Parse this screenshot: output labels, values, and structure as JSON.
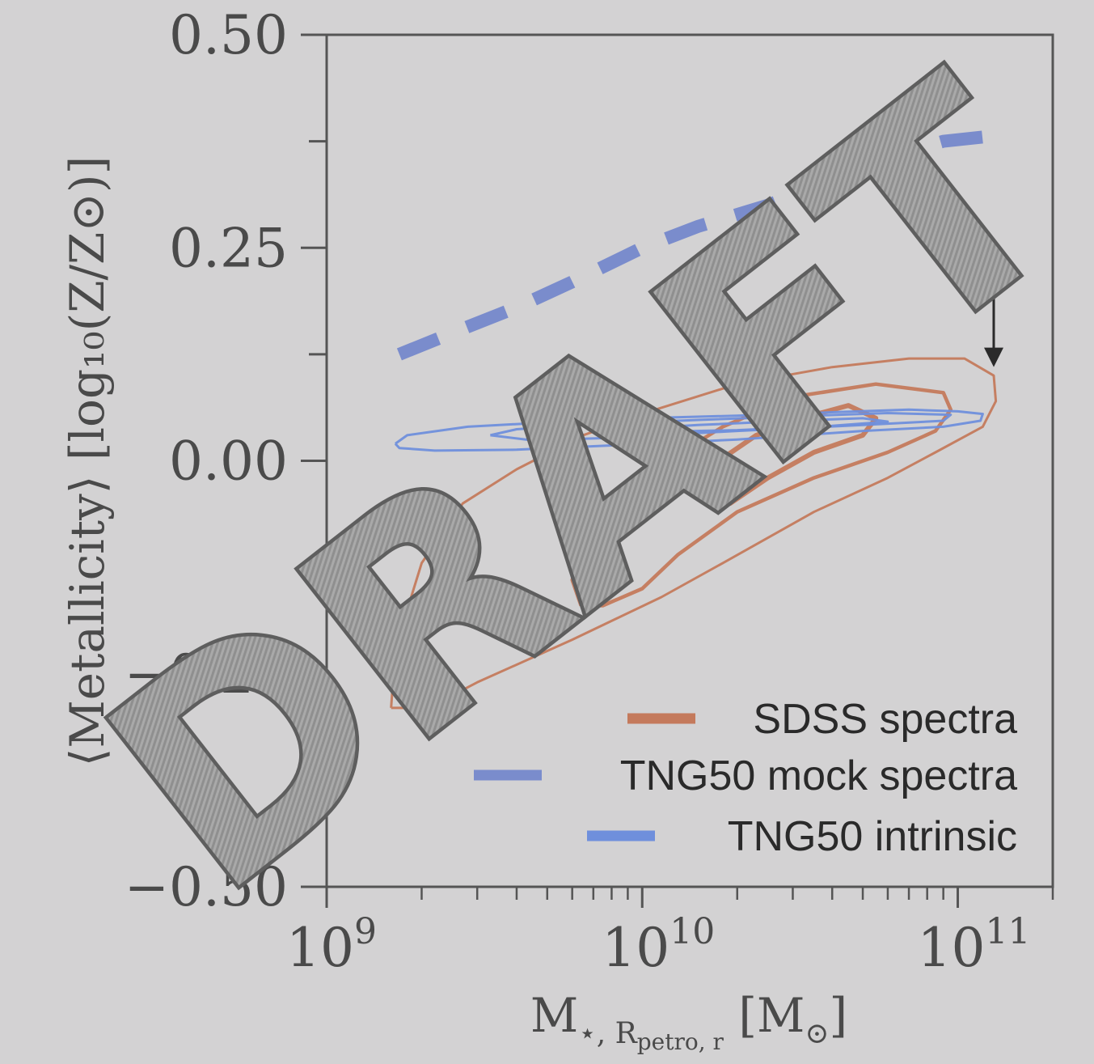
{
  "chart_data": {
    "type": "contour",
    "xscale": "log",
    "xlim": [
      1000000000,
      200000000000
    ],
    "ylim": [
      -0.5,
      0.5
    ],
    "xlabel": {
      "main": "M",
      "sub": "⋆, R",
      "subsub": "petro, r",
      "unit": " [M",
      "unit_sub": "⊙",
      "close": "]"
    },
    "ylabel": "⟨Metallicity⟩ [log₁₀(Z/Z⊙)]",
    "yticks": [
      {
        "value": 0.5,
        "label": "0.50"
      },
      {
        "value": 0.25,
        "label": "0.25"
      },
      {
        "value": 0.0,
        "label": "0.00"
      },
      {
        "value": -0.25,
        "label": "−0.25"
      },
      {
        "value": -0.5,
        "label": "−0.50"
      }
    ],
    "xticks": [
      {
        "value": 1000000000,
        "base": "10",
        "exp": "9"
      },
      {
        "value": 10000000000,
        "base": "10",
        "exp": "10"
      },
      {
        "value": 100000000000,
        "base": "10",
        "exp": "11"
      }
    ],
    "grid": false,
    "legend_position": "lower-right",
    "series": [
      {
        "name": "SDSS spectra",
        "color": "#c47a5c",
        "style": "contours",
        "levels": [
          [
            [
              1600000000.0,
              -0.29
            ],
            [
              1650000000.0,
              -0.22
            ],
            [
              2000000000.0,
              -0.12
            ],
            [
              2700000000.0,
              -0.05
            ],
            [
              4000000000.0,
              -0.01
            ],
            [
              6500000000.0,
              0.03
            ],
            [
              11000000000.0,
              0.06
            ],
            [
              20000000000.0,
              0.09
            ],
            [
              40000000000.0,
              0.11
            ],
            [
              70000000000.0,
              0.12
            ],
            [
              105000000000.0,
              0.12
            ],
            [
              130000000000.0,
              0.1
            ],
            [
              132000000000.0,
              0.07
            ],
            [
              120000000000.0,
              0.04
            ],
            [
              85000000000.0,
              0.01
            ],
            [
              60000000000.0,
              -0.02
            ],
            [
              35000000000.0,
              -0.06
            ],
            [
              18000000000.0,
              -0.12
            ],
            [
              11500000000.0,
              -0.16
            ],
            [
              6000000000.0,
              -0.21
            ],
            [
              3000000000.0,
              -0.26
            ],
            [
              2100000000.0,
              -0.29
            ],
            [
              1600000000.0,
              -0.29
            ]
          ],
          [
            [
              6400000000.0,
              -0.17
            ],
            [
              6000000000.0,
              -0.14
            ],
            [
              6500000000.0,
              -0.09
            ],
            [
              8000000000.0,
              -0.04
            ],
            [
              12000000000.0,
              0.0
            ],
            [
              18000000000.0,
              0.04
            ],
            [
              30000000000.0,
              0.075
            ],
            [
              55000000000.0,
              0.09
            ],
            [
              90000000000.0,
              0.08
            ],
            [
              95000000000.0,
              0.06
            ],
            [
              85000000000.0,
              0.035
            ],
            [
              60000000000.0,
              0.01
            ],
            [
              35000000000.0,
              -0.02
            ],
            [
              20000000000.0,
              -0.06
            ],
            [
              13000000000.0,
              -0.11
            ],
            [
              10000000000.0,
              -0.15
            ],
            [
              7500000000.0,
              -0.17
            ],
            [
              6400000000.0,
              -0.17
            ]
          ],
          [
            [
              16000000000.0,
              -0.05
            ],
            [
              15500000000.0,
              -0.03
            ],
            [
              17500000000.0,
              0.0
            ],
            [
              23000000000.0,
              0.03
            ],
            [
              32000000000.0,
              0.05
            ],
            [
              45000000000.0,
              0.065
            ],
            [
              55000000000.0,
              0.05
            ],
            [
              50000000000.0,
              0.03
            ],
            [
              35000000000.0,
              0.01
            ],
            [
              25000000000.0,
              -0.02
            ],
            [
              19000000000.0,
              -0.05
            ],
            [
              16000000000.0,
              -0.05
            ]
          ]
        ],
        "stroke_widths": [
          3,
          4.5,
          6
        ]
      },
      {
        "name": "TNG50 mock spectra",
        "color": "#7a8ccc",
        "style": "dashed",
        "points": [
          [
            1700000000.0,
            0.125
          ],
          [
            2500000000.0,
            0.15
          ],
          [
            4000000000.0,
            0.18
          ],
          [
            6000000000.0,
            0.21
          ],
          [
            10000000000.0,
            0.25
          ],
          [
            15000000000.0,
            0.275
          ],
          [
            25000000000.0,
            0.3
          ],
          [
            40000000000.0,
            0.33
          ],
          [
            65000000000.0,
            0.36
          ],
          [
            90000000000.0,
            0.375
          ],
          [
            120000000000.0,
            0.38
          ]
        ]
      },
      {
        "name": "TNG50 intrinsic",
        "color": "#6f8fdc",
        "style": "contours",
        "levels": [
          [
            [
              1650000000.0,
              0.02
            ],
            [
              1800000000.0,
              0.03
            ],
            [
              2800000000.0,
              0.04
            ],
            [
              5000000000.0,
              0.045
            ],
            [
              10000000000.0,
              0.05
            ],
            [
              20000000000.0,
              0.053
            ],
            [
              40000000000.0,
              0.057
            ],
            [
              70000000000.0,
              0.06
            ],
            [
              100000000000.0,
              0.058
            ],
            [
              120000000000.0,
              0.055
            ],
            [
              118000000000.0,
              0.047
            ],
            [
              90000000000.0,
              0.04
            ],
            [
              50000000000.0,
              0.035
            ],
            [
              20000000000.0,
              0.025
            ],
            [
              8000000000.0,
              0.018
            ],
            [
              4000000000.0,
              0.013
            ],
            [
              2200000000.0,
              0.012
            ],
            [
              1700000000.0,
              0.015
            ],
            [
              1650000000.0,
              0.02
            ]
          ],
          [
            [
              3300000000.0,
              0.03
            ],
            [
              4000000000.0,
              0.037
            ],
            [
              7000000000.0,
              0.043
            ],
            [
              15000000000.0,
              0.048
            ],
            [
              30000000000.0,
              0.052
            ],
            [
              60000000000.0,
              0.056
            ],
            [
              95000000000.0,
              0.054
            ],
            [
              90000000000.0,
              0.047
            ],
            [
              50000000000.0,
              0.042
            ],
            [
              20000000000.0,
              0.035
            ],
            [
              8000000000.0,
              0.027
            ],
            [
              4500000000.0,
              0.024
            ],
            [
              3300000000.0,
              0.03
            ]
          ],
          [
            [
              9000000000.0,
              0.037
            ],
            [
              15000000000.0,
              0.042
            ],
            [
              30000000000.0,
              0.047
            ],
            [
              50000000000.0,
              0.05
            ],
            [
              60000000000.0,
              0.046
            ],
            [
              40000000000.0,
              0.041
            ],
            [
              20000000000.0,
              0.036
            ],
            [
              11000000000.0,
              0.034
            ],
            [
              9000000000.0,
              0.037
            ]
          ]
        ],
        "stroke_widths": [
          3,
          3,
          3
        ]
      }
    ],
    "annotation": {
      "type": "double-arrow",
      "x": 130000000000.0,
      "y_top": 0.25,
      "y_bottom": 0.11,
      "color": "#2a2a2a"
    }
  },
  "legend": [
    {
      "label": "SDSS spectra",
      "color": "#c47a5c",
      "style": "solid"
    },
    {
      "label": "TNG50 mock spectra",
      "color": "#7a8ccc",
      "style": "dashed"
    },
    {
      "label": "TNG50 intrinsic",
      "color": "#6f8fdc",
      "style": "solid"
    }
  ],
  "watermark": "DRAFT"
}
